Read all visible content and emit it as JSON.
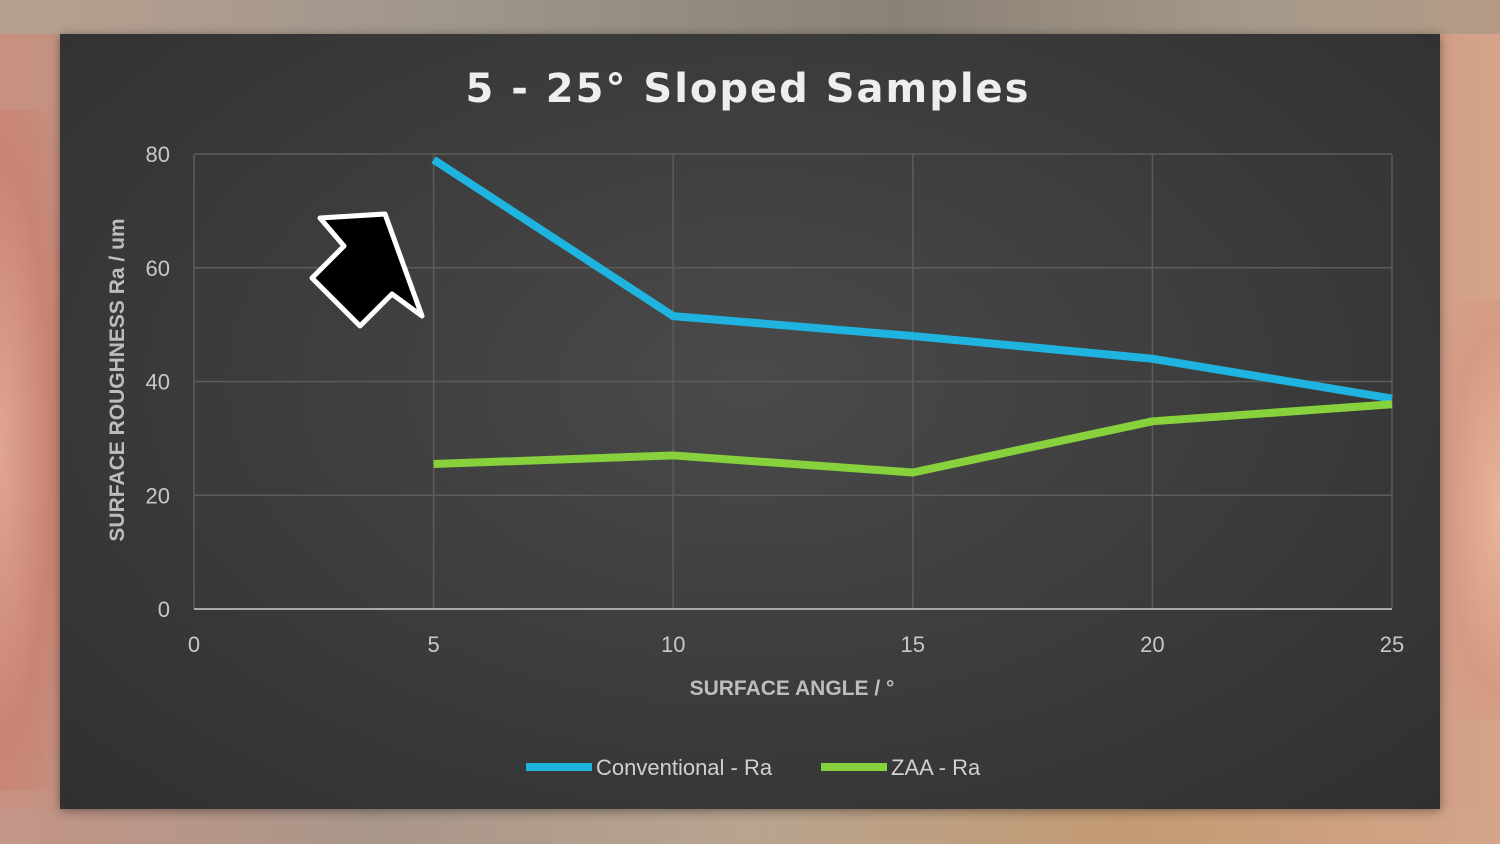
{
  "chart_data": {
    "type": "line",
    "title": "5 - 25° Sloped Samples",
    "xlabel": "SURFACE ANGLE / °",
    "ylabel": "SURFACE ROUGHNESS Ra / um",
    "xlim": [
      0,
      25
    ],
    "ylim": [
      0,
      80
    ],
    "x_ticks": [
      "0",
      "5",
      "10",
      "15",
      "20",
      "25"
    ],
    "y_ticks": [
      "0",
      "20",
      "40",
      "60",
      "80"
    ],
    "x_tick_values": [
      0,
      5,
      10,
      15,
      20,
      25
    ],
    "y_tick_values": [
      0,
      20,
      40,
      60,
      80
    ],
    "grid": true,
    "legend": "bottom",
    "series": [
      {
        "name": "Conventional - Ra",
        "color": "#1fb4e0",
        "x": [
          5,
          10,
          15,
          20,
          25
        ],
        "y": [
          79,
          51.5,
          48,
          44,
          37
        ]
      },
      {
        "name": "ZAA - Ra",
        "color": "#86d13c",
        "x": [
          5,
          10,
          15,
          20,
          25
        ],
        "y": [
          25.5,
          27,
          24,
          33,
          36
        ]
      }
    ],
    "annotation": {
      "type": "arrow",
      "color": "#000000",
      "outline": "#ffffff",
      "direction": "down-right"
    }
  }
}
